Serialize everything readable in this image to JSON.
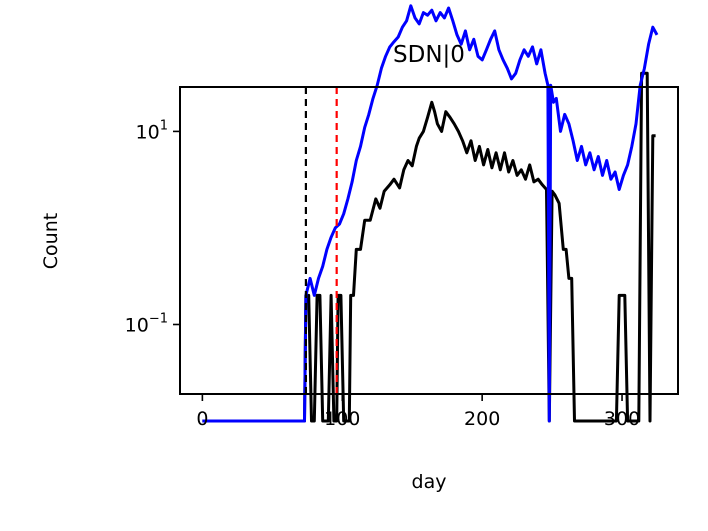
{
  "chart_data": {
    "type": "line",
    "title": "SDN|0",
    "xlabel": "day",
    "ylabel": "Count",
    "xlim": [
      -16,
      340
    ],
    "ylim_log10": [
      -1.72,
      1.46
    ],
    "yscale": "log",
    "grid": false,
    "legend": "none",
    "x_ticks": [
      {
        "value": 0,
        "label": "0"
      },
      {
        "value": 100,
        "label": "100"
      },
      {
        "value": 200,
        "label": "200"
      },
      {
        "value": 300,
        "label": "300"
      }
    ],
    "y_ticks": [
      {
        "value": 10,
        "base": "10",
        "exp": "1"
      },
      {
        "value": 0.1,
        "base": "10",
        "exp": "−1"
      }
    ],
    "vlines": [
      {
        "x": 74,
        "color": "#000000",
        "style": "dashed"
      },
      {
        "x": 96,
        "color": "#ff0000",
        "style": "dashed"
      }
    ],
    "series": [
      {
        "color": "#000000",
        "points": [
          [
            0,
            0.01
          ],
          [
            70,
            0.01
          ],
          [
            73,
            0.01
          ],
          [
            74,
            0.2
          ],
          [
            76,
            0.2
          ],
          [
            78,
            0.01
          ],
          [
            80,
            0.01
          ],
          [
            82,
            0.2
          ],
          [
            84,
            0.2
          ],
          [
            86,
            0.01
          ],
          [
            90,
            0.01
          ],
          [
            92,
            0.2
          ],
          [
            94,
            0.01
          ],
          [
            96,
            0.01
          ],
          [
            97,
            0.2
          ],
          [
            99,
            0.2
          ],
          [
            101,
            0.01
          ],
          [
            105,
            0.01
          ],
          [
            106,
            0.2
          ],
          [
            108,
            0.2
          ],
          [
            110,
            0.6
          ],
          [
            113,
            0.6
          ],
          [
            116,
            1.2
          ],
          [
            120,
            1.2
          ],
          [
            124,
            2.0
          ],
          [
            127,
            1.6
          ],
          [
            130,
            2.4
          ],
          [
            134,
            2.8
          ],
          [
            137,
            3.2
          ],
          [
            141,
            2.6
          ],
          [
            144,
            4.0
          ],
          [
            147,
            5.0
          ],
          [
            150,
            4.4
          ],
          [
            153,
            7.0
          ],
          [
            155,
            8.5
          ],
          [
            158,
            10
          ],
          [
            161,
            14
          ],
          [
            164,
            20
          ],
          [
            166,
            16
          ],
          [
            168,
            12
          ],
          [
            171,
            10
          ],
          [
            174,
            16
          ],
          [
            177,
            14
          ],
          [
            180,
            12
          ],
          [
            183,
            10
          ],
          [
            186,
            8
          ],
          [
            189,
            6
          ],
          [
            192,
            8
          ],
          [
            195,
            5
          ],
          [
            198,
            7
          ],
          [
            201,
            4.5
          ],
          [
            204,
            6.5
          ],
          [
            207,
            4.2
          ],
          [
            210,
            6
          ],
          [
            213,
            4
          ],
          [
            216,
            6
          ],
          [
            219,
            3.8
          ],
          [
            222,
            5
          ],
          [
            225,
            3.5
          ],
          [
            228,
            4
          ],
          [
            231,
            3.2
          ],
          [
            234,
            4.5
          ],
          [
            237,
            3
          ],
          [
            240,
            3.2
          ],
          [
            243,
            2.8
          ],
          [
            246,
            2.5
          ],
          [
            248,
            0.01
          ],
          [
            250,
            2.4
          ],
          [
            252,
            2.2
          ],
          [
            255,
            1.8
          ],
          [
            258,
            0.6
          ],
          [
            260,
            0.6
          ],
          [
            262,
            0.3
          ],
          [
            264,
            0.3
          ],
          [
            266,
            0.01
          ],
          [
            280,
            0.01
          ],
          [
            296,
            0.01
          ],
          [
            298,
            0.2
          ],
          [
            302,
            0.2
          ],
          [
            304,
            0.01
          ],
          [
            312,
            0.01
          ],
          [
            314,
            40
          ],
          [
            318,
            40
          ],
          [
            320,
            0.01
          ],
          [
            322,
            9
          ],
          [
            324,
            9
          ]
        ]
      },
      {
        "color": "#0000ff",
        "points": [
          [
            0,
            0.01
          ],
          [
            70,
            0.01
          ],
          [
            73,
            0.01
          ],
          [
            74,
            0.2
          ],
          [
            77,
            0.3
          ],
          [
            80,
            0.2
          ],
          [
            83,
            0.3
          ],
          [
            86,
            0.4
          ],
          [
            89,
            0.6
          ],
          [
            92,
            0.8
          ],
          [
            95,
            1.0
          ],
          [
            98,
            1.1
          ],
          [
            101,
            1.4
          ],
          [
            104,
            2.0
          ],
          [
            107,
            3.0
          ],
          [
            110,
            5.0
          ],
          [
            113,
            7.0
          ],
          [
            116,
            11
          ],
          [
            119,
            15
          ],
          [
            122,
            22
          ],
          [
            125,
            30
          ],
          [
            128,
            45
          ],
          [
            131,
            60
          ],
          [
            134,
            75
          ],
          [
            137,
            85
          ],
          [
            140,
            95
          ],
          [
            143,
            120
          ],
          [
            146,
            140
          ],
          [
            149,
            200
          ],
          [
            152,
            150
          ],
          [
            155,
            130
          ],
          [
            158,
            170
          ],
          [
            161,
            160
          ],
          [
            164,
            180
          ],
          [
            167,
            140
          ],
          [
            170,
            170
          ],
          [
            173,
            150
          ],
          [
            176,
            190
          ],
          [
            179,
            140
          ],
          [
            182,
            100
          ],
          [
            185,
            80
          ],
          [
            188,
            110
          ],
          [
            191,
            70
          ],
          [
            194,
            90
          ],
          [
            197,
            60
          ],
          [
            200,
            55
          ],
          [
            203,
            70
          ],
          [
            206,
            90
          ],
          [
            209,
            110
          ],
          [
            212,
            70
          ],
          [
            215,
            55
          ],
          [
            218,
            45
          ],
          [
            221,
            35
          ],
          [
            224,
            40
          ],
          [
            227,
            55
          ],
          [
            230,
            70
          ],
          [
            233,
            60
          ],
          [
            236,
            75
          ],
          [
            239,
            50
          ],
          [
            242,
            70
          ],
          [
            245,
            40
          ],
          [
            247,
            30
          ],
          [
            248,
            0.01
          ],
          [
            249,
            30
          ],
          [
            251,
            20
          ],
          [
            253,
            22
          ],
          [
            256,
            10
          ],
          [
            259,
            15
          ],
          [
            262,
            12
          ],
          [
            265,
            8
          ],
          [
            268,
            5
          ],
          [
            271,
            7
          ],
          [
            274,
            4.5
          ],
          [
            277,
            6
          ],
          [
            280,
            4
          ],
          [
            283,
            5.5
          ],
          [
            286,
            3.5
          ],
          [
            289,
            5
          ],
          [
            292,
            3.2
          ],
          [
            295,
            3.8
          ],
          [
            298,
            2.5
          ],
          [
            301,
            3.5
          ],
          [
            304,
            4.5
          ],
          [
            307,
            7
          ],
          [
            310,
            12
          ],
          [
            313,
            30
          ],
          [
            316,
            45
          ],
          [
            319,
            80
          ],
          [
            322,
            120
          ],
          [
            325,
            100
          ]
        ]
      }
    ]
  }
}
